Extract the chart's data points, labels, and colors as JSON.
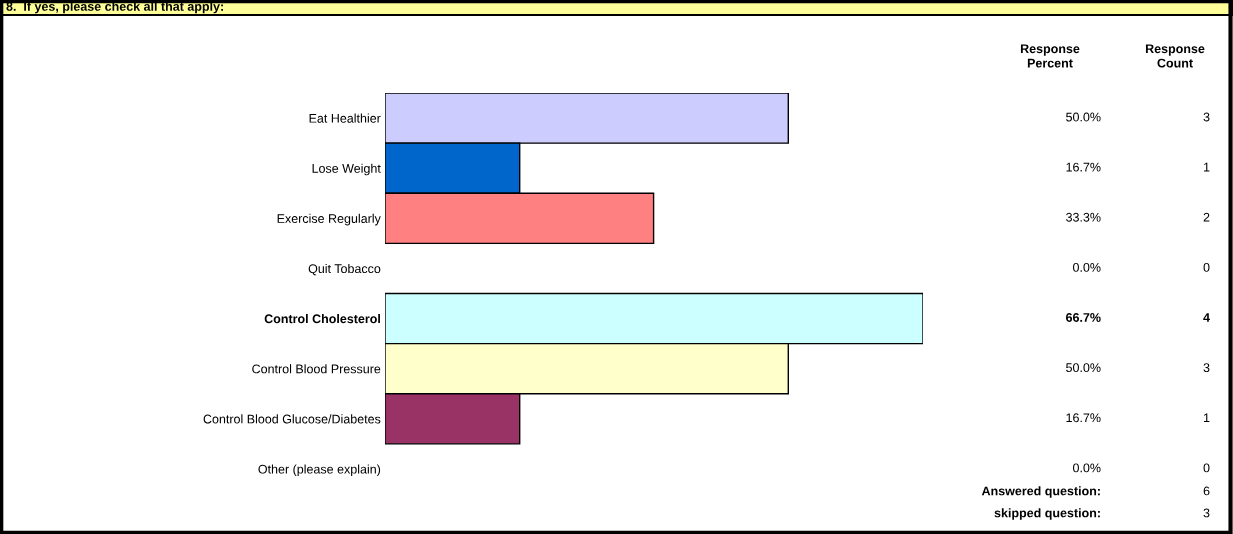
{
  "chart_data": {
    "type": "bar",
    "orientation": "horizontal",
    "title": "8.  If yes, please check all that apply:",
    "categories": [
      "Eat Healthier",
      "Lose Weight",
      "Exercise Regularly",
      "Quit Tobacco",
      "Control Cholesterol",
      "Control Blood Pressure",
      "Control Blood Glucose/Diabetes",
      "Other (please explain)"
    ],
    "values": [
      50.0,
      16.7,
      33.3,
      0.0,
      66.7,
      50.0,
      16.7,
      0.0
    ],
    "colors": [
      "#ccccff",
      "#0066cc",
      "#ff8080",
      "#660066",
      "#ccffff",
      "#ffffcc",
      "#993366",
      "#9999ff"
    ],
    "value_labels": [
      "50.0%",
      "16.7%",
      "33.3%",
      "0.0%",
      "66.7%",
      "50.0%",
      "16.7%",
      "0.0%"
    ],
    "annotations": [
      "Response\nPercent",
      "Response\nCount",
      "Answered question:",
      "6",
      "skipped question:",
      "3",
      "3",
      "1",
      "2",
      "0",
      "4",
      "3",
      "1",
      "0"
    ],
    "grid": false,
    "legend": false
  }
}
